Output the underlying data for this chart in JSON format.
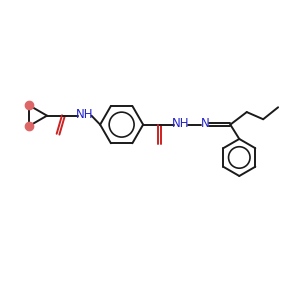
{
  "background_color": "#ffffff",
  "bond_color": "#1a1a1a",
  "heteroatom_color": "#2222cc",
  "oxygen_color": "#cc2222",
  "cyclopropane_fill": "#dd6666",
  "bond_lw": 1.4,
  "dbo": 0.06,
  "fs": 8.5,
  "fig_w": 3.0,
  "fig_h": 3.0,
  "dpi": 100,
  "xlim": [
    0,
    10
  ],
  "ylim": [
    0,
    10
  ]
}
